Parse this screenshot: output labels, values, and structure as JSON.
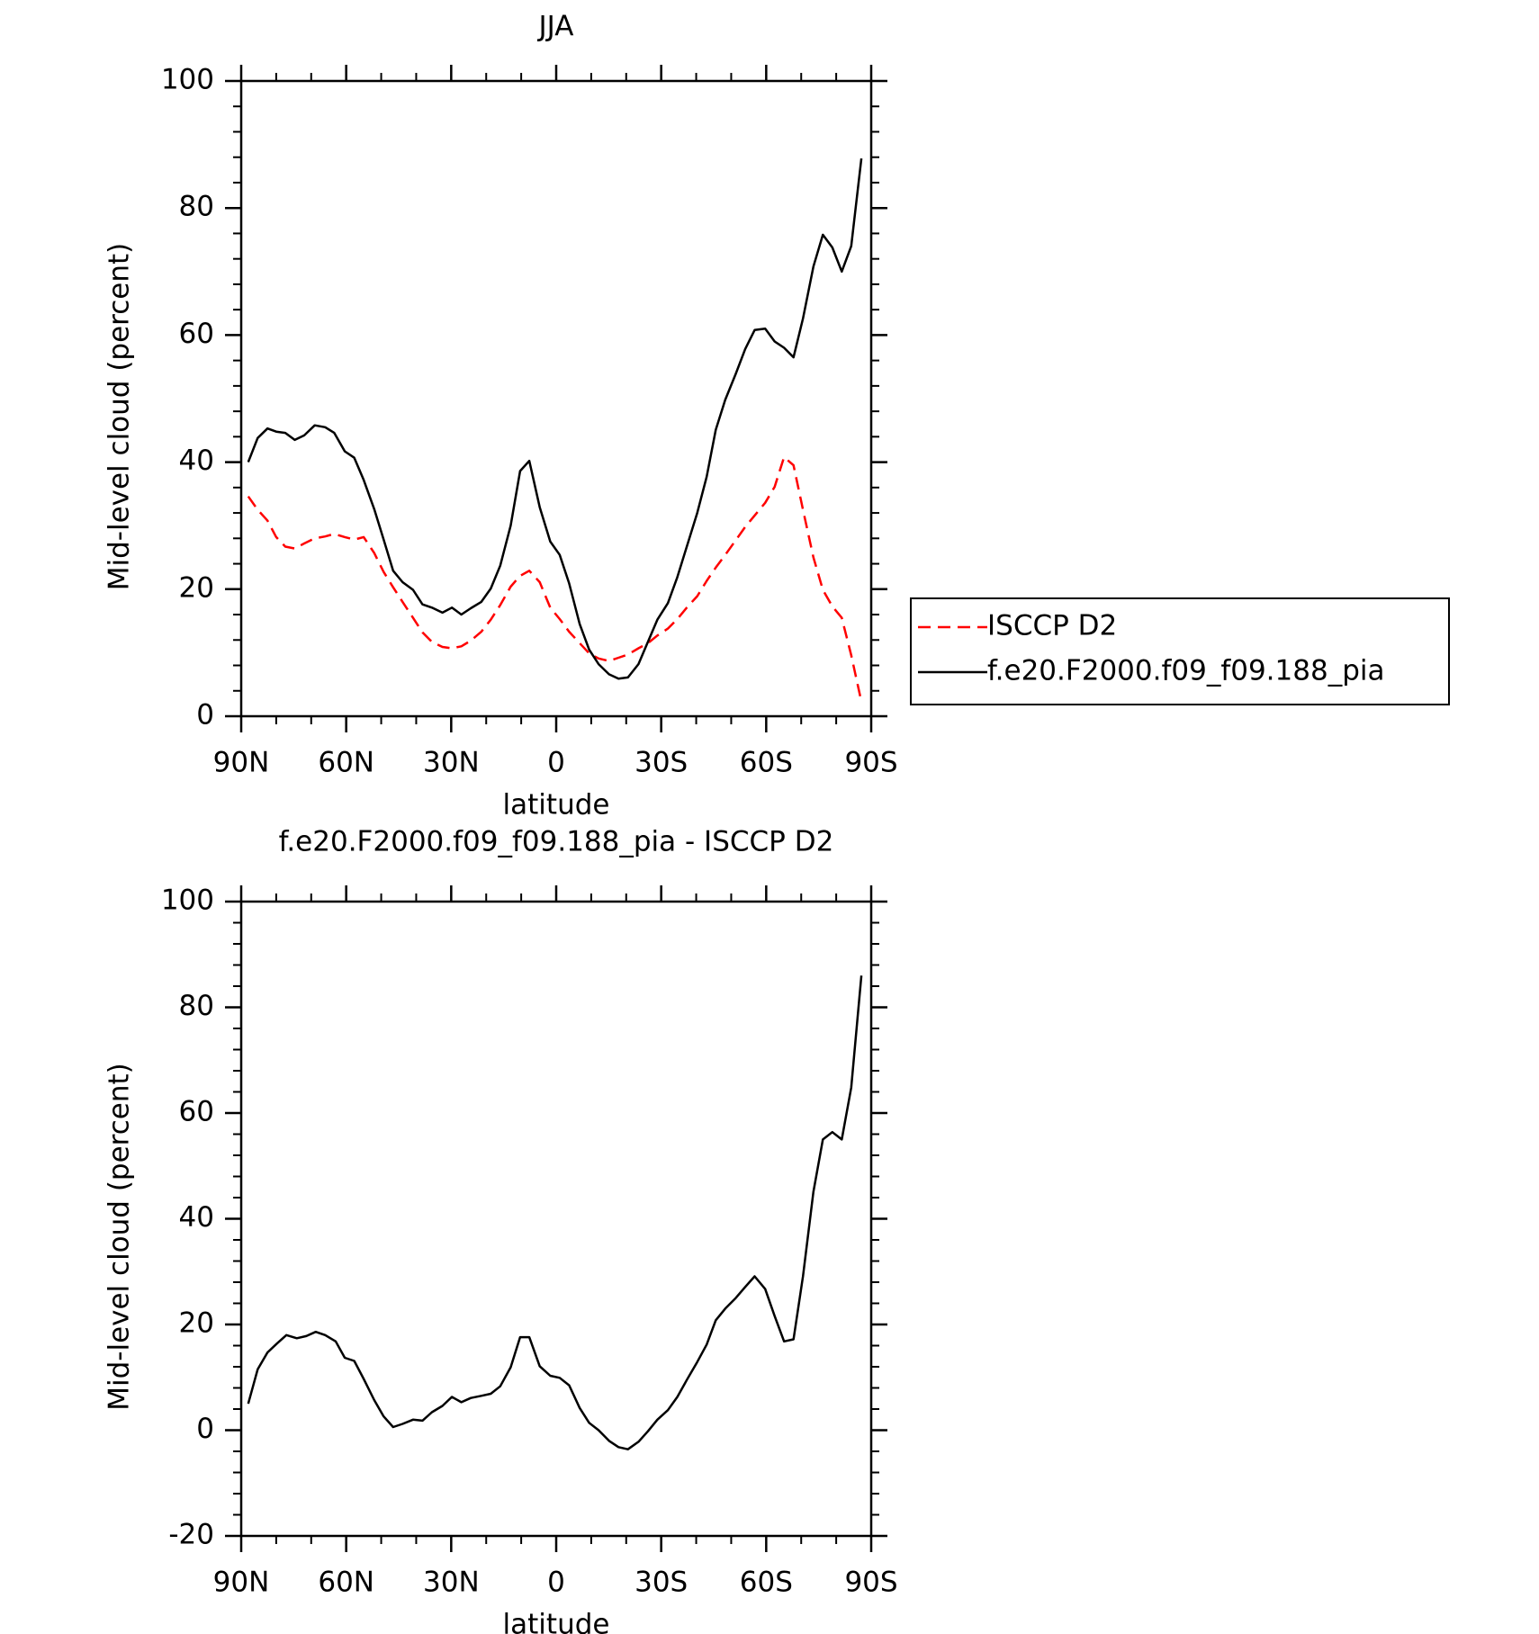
{
  "chart_data": [
    {
      "type": "line",
      "title": "JJA",
      "x_label": "latitude",
      "y_label": "Mid-level cloud (percent)",
      "xlim": [
        90,
        -90
      ],
      "xticks": [
        {
          "value": 90,
          "label": "90N"
        },
        {
          "value": 60,
          "label": "60N"
        },
        {
          "value": 30,
          "label": "30N"
        },
        0,
        {
          "value": -30,
          "label": "30S"
        },
        {
          "value": -60,
          "label": "60S"
        },
        {
          "value": -90,
          "label": "90S"
        }
      ],
      "ylim": [
        0,
        100
      ],
      "yticks": [
        0,
        20,
        40,
        60,
        80,
        100
      ],
      "legend": "right",
      "x": [
        88,
        85.3,
        82.5,
        80,
        77.4,
        74.7,
        72,
        69,
        66,
        63.4,
        60.4,
        57.7,
        55,
        52,
        49.3,
        46.6,
        43.9,
        40.9,
        38.2,
        35.5,
        32.5,
        29.8,
        27.1,
        24.4,
        21.4,
        18.7,
        16,
        13,
        10.3,
        7.7,
        4.7,
        1.7,
        -1,
        -3.7,
        -6.7,
        -9.4,
        -12.1,
        -15.1,
        -17.8,
        -20.5,
        -23.5,
        -26.2,
        -28.9,
        -31.9,
        -34.6,
        -37.3,
        -40.3,
        -43,
        -45.6,
        -48.3,
        -51.3,
        -54,
        -56.7,
        -59.7,
        -62.4,
        -65.1,
        -67.8,
        -70.5,
        -73.5,
        -76.2,
        -78.9,
        -81.6,
        -84.3,
        -87.2
      ],
      "series": [
        {
          "name": "ISCCP D2",
          "color": "#ff0000",
          "dash": true,
          "values": [
            34.6,
            32.5,
            30.8,
            28.2,
            26.7,
            26.4,
            27.2,
            28,
            28.3,
            28.7,
            28.2,
            27.8,
            28.2,
            25.7,
            22.7,
            20.3,
            18,
            15.5,
            13.2,
            11.7,
            10.9,
            10.7,
            11,
            11.9,
            13.3,
            15.2,
            17.5,
            20.4,
            22.1,
            22.9,
            21.1,
            17.1,
            15.3,
            13.3,
            11.5,
            9.9,
            9.1,
            8.7,
            9.2,
            9.7,
            10.7,
            11.5,
            12.7,
            13.8,
            15.3,
            17.1,
            18.9,
            21.3,
            23.4,
            25.4,
            27.7,
            29.8,
            31.6,
            33.6,
            36.1,
            40.8,
            39.5,
            32.5,
            25,
            19.9,
            17.3,
            15.5,
            9.6,
            2.3
          ]
        },
        {
          "name": "f.e20.F2000.f09_f09.188_pia",
          "color": "#000000",
          "dash": false,
          "values": [
            40,
            43.8,
            45.3,
            44.8,
            44.6,
            43.5,
            44.2,
            45.8,
            45.5,
            44.6,
            41.7,
            40.7,
            37.2,
            32.6,
            27.8,
            22.9,
            21.1,
            19.9,
            17.6,
            17.1,
            16.3,
            17.1,
            16,
            17,
            18,
            20.1,
            23.7,
            30,
            38.6,
            40.2,
            32.9,
            27.5,
            25.4,
            20.9,
            14.5,
            10.5,
            8.2,
            6.6,
            5.9,
            6.1,
            8.2,
            11.7,
            15.2,
            17.8,
            21.9,
            26.7,
            32,
            37.7,
            45.1,
            49.8,
            53.9,
            57.8,
            60.8,
            61,
            59,
            58,
            56.5,
            62.6,
            70.8,
            75.8,
            73.8,
            70,
            74,
            87.8
          ]
        }
      ]
    },
    {
      "type": "line",
      "title": "f.e20.F2000.f09_f09.188_pia - ISCCP D2",
      "x_label": "latitude",
      "y_label": "Mid-level cloud (percent)",
      "xlim": [
        90,
        -90
      ],
      "xticks": [
        {
          "value": 90,
          "label": "90N"
        },
        {
          "value": 60,
          "label": "60N"
        },
        {
          "value": 30,
          "label": "30N"
        },
        0,
        {
          "value": -30,
          "label": "30S"
        },
        {
          "value": -60,
          "label": "60S"
        },
        {
          "value": -90,
          "label": "90S"
        }
      ],
      "ylim": [
        -20,
        100
      ],
      "yticks": [
        -20,
        0,
        20,
        40,
        60,
        80,
        100
      ],
      "x": [
        88,
        85.3,
        82.5,
        79.8,
        77.1,
        74.1,
        71.4,
        68.7,
        66,
        63,
        60.4,
        57.7,
        55,
        52,
        49.3,
        46.6,
        43.9,
        40.9,
        38.2,
        35.5,
        32.5,
        29.8,
        27.1,
        24.4,
        21.4,
        18.7,
        16,
        13,
        10.3,
        7.7,
        4.7,
        1.7,
        -1,
        -3.7,
        -6.7,
        -9.4,
        -12.1,
        -15.1,
        -17.8,
        -20.5,
        -23.5,
        -26.2,
        -28.9,
        -31.9,
        -34.6,
        -37.3,
        -40.3,
        -43,
        -45.6,
        -48.3,
        -51.3,
        -54,
        -56.7,
        -59.7,
        -62.4,
        -65.1,
        -67.8,
        -70.5,
        -73.5,
        -76.2,
        -78.9,
        -81.6,
        -84.3,
        -87.2
      ],
      "series": [
        {
          "color": "#000000",
          "dash": false,
          "values": [
            5,
            11.5,
            14.7,
            16.4,
            18,
            17.4,
            17.8,
            18.6,
            18,
            16.8,
            13.7,
            13.1,
            9.7,
            5.7,
            2.6,
            0.6,
            1.2,
            2,
            1.8,
            3.4,
            4.6,
            6.3,
            5.3,
            6.1,
            6.5,
            6.9,
            8.3,
            11.9,
            17.6,
            17.6,
            12.1,
            10.3,
            9.9,
            8.5,
            4.2,
            1.4,
            0,
            -2,
            -3.2,
            -3.6,
            -2.2,
            -0.2,
            2,
            3.8,
            6.3,
            9.5,
            12.9,
            16.2,
            20.8,
            23,
            25,
            27.1,
            29.1,
            26.7,
            21.6,
            16.8,
            17.2,
            29.1,
            45.1,
            55,
            56.4,
            55,
            64.8,
            86
          ]
        }
      ]
    }
  ]
}
